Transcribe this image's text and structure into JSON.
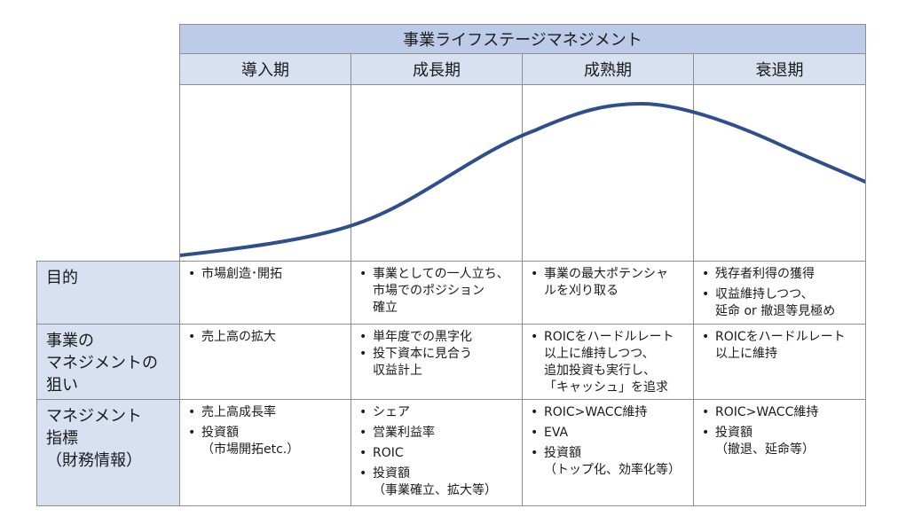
{
  "title": "事業ライフステージマネジメント",
  "stages": [
    "導入期",
    "成長期",
    "成熟期",
    "衰退期"
  ],
  "curve_color": "#2f4e8c",
  "rows": [
    {
      "label": [
        "目的"
      ],
      "cells": [
        [
          [
            "市場創造･開拓"
          ]
        ],
        [
          [
            "事業としての一人立ち、",
            "市場でのポジション",
            "確立"
          ]
        ],
        [
          [
            "事業の最大ポテンシャ",
            "ルを刈り取る"
          ]
        ],
        [
          [
            "残存者利得の獲得"
          ],
          [
            "収益維持しつつ、",
            "延命 or 撤退等見極め"
          ]
        ]
      ]
    },
    {
      "label": [
        "事業の",
        "マネジメントの",
        "狙い"
      ],
      "cells": [
        [
          [
            "売上高の拡大"
          ]
        ],
        [
          [
            "単年度での黒字化"
          ],
          [
            "投下資本に見合う",
            "収益計上"
          ]
        ],
        [
          [
            "ROICをハードルレート",
            "以上に維持しつつ、",
            "追加投資も実行し、",
            "「キャッシュ」を追求"
          ]
        ],
        [
          [
            "ROICをハードルレート",
            "以上に維持"
          ]
        ]
      ]
    },
    {
      "label": [
        "マネジメント",
        "指標",
        "（財務情報）"
      ],
      "cells": [
        [
          [
            "売上高成長率"
          ],
          [
            "投資額",
            "（市場開拓etc.）"
          ]
        ],
        [
          [
            "シェア"
          ],
          [
            "営業利益率"
          ],
          [
            "ROIC"
          ],
          [
            "投資額",
            "（事業確立、拡大等）"
          ]
        ],
        [
          [
            "ROIC>WACC維持"
          ],
          [
            "EVA"
          ],
          [
            "投資額",
            "（トップ化、効率化等）"
          ]
        ],
        [
          [
            "ROIC>WACC維持"
          ],
          [
            "投資額",
            "（撤退、延命等）"
          ]
        ]
      ]
    }
  ]
}
